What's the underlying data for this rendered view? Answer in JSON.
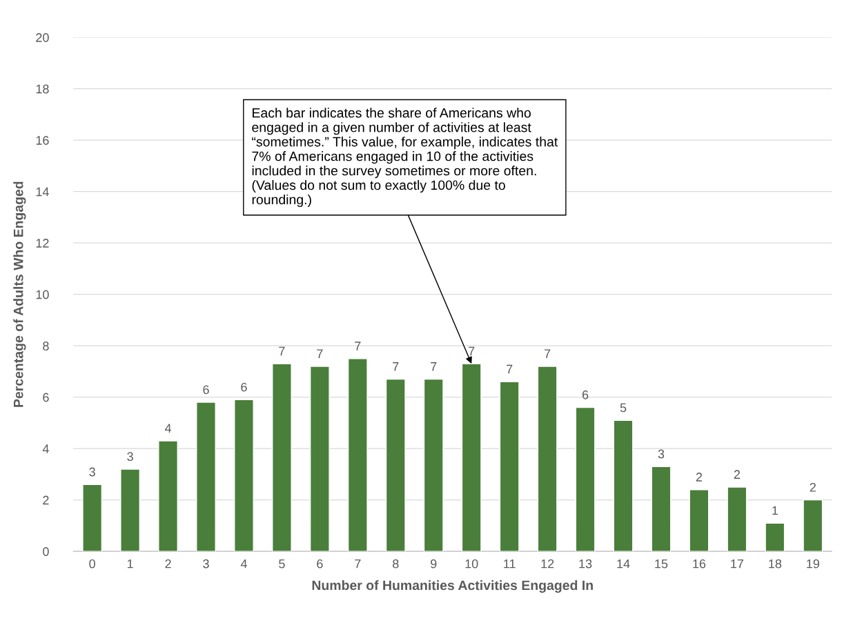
{
  "chart_data": {
    "type": "bar",
    "xlabel": "Number of Humanities Activities Engaged In",
    "ylabel": "Percentage of Adults Who Engaged",
    "categories": [
      "0",
      "1",
      "2",
      "3",
      "4",
      "5",
      "6",
      "7",
      "8",
      "9",
      "10",
      "11",
      "12",
      "13",
      "14",
      "15",
      "16",
      "17",
      "18",
      "19"
    ],
    "values": [
      2.6,
      3.2,
      4.3,
      5.8,
      5.9,
      7.3,
      7.2,
      7.5,
      6.7,
      6.7,
      7.3,
      6.6,
      7.2,
      5.6,
      5.1,
      3.3,
      2.4,
      2.5,
      1.1,
      2.0
    ],
    "value_labels": [
      "3",
      "3",
      "4",
      "6",
      "6",
      "7",
      "7",
      "7",
      "7",
      "7",
      "7",
      "7",
      "7",
      "6",
      "5",
      "3",
      "2",
      "2",
      "1",
      "2"
    ],
    "color": "#4a7e3b",
    "ylim": [
      0,
      20
    ],
    "yticks": [
      0,
      2,
      4,
      6,
      8,
      10,
      12,
      14,
      16,
      18,
      20
    ],
    "grid": "y",
    "legend": false,
    "annotations": [
      {
        "text": "Each bar indicates the share of Americans who engaged in a given number of activities at least “sometimes.” This value, for example, indicates that 7% of Americans engaged in 10 of the activities included in the survey sometimes or more often. (Values do not sum to exactly 100% due to rounding.)",
        "x": "10",
        "y": 7.3
      }
    ]
  }
}
